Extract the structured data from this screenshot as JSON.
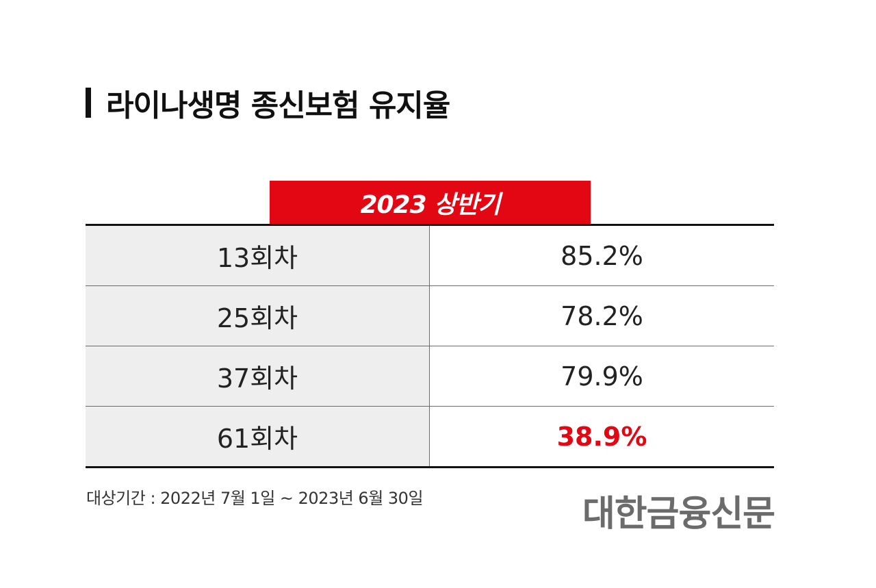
{
  "title": "라이나생명 종신보험 유지율",
  "chart_data": {
    "type": "table",
    "title": "라이나생명 종신보험 유지율",
    "column_header": "2023 상반기",
    "rows": [
      {
        "label": "13회차",
        "value": "85.2%"
      },
      {
        "label": "25회차",
        "value": "78.2%"
      },
      {
        "label": "37회차",
        "value": "79.9%"
      },
      {
        "label": "61회차",
        "value": "38.9%",
        "highlight": true
      }
    ],
    "highlight_color": "#e30613",
    "header_color": "#e30613"
  },
  "footnote": "대상기간 : 2022년 7월 1일 ~ 2023년 6월 30일",
  "logo_text": "대한금융신문"
}
